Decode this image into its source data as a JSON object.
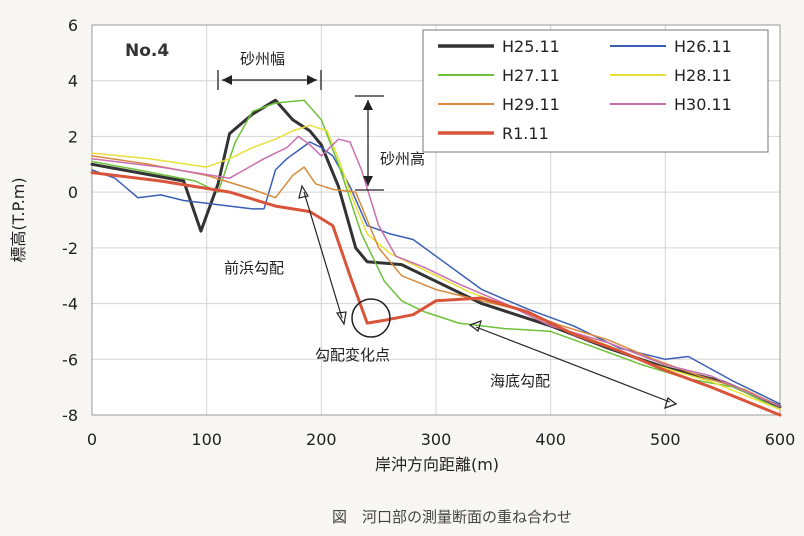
{
  "chart_data": {
    "type": "line",
    "panel_label": "No.4",
    "xlabel": "岸沖方向距離(m)",
    "ylabel": "標高(T.P.m)",
    "caption": "図　河口部の測量断面の重ね合わせ",
    "xlim": [
      0,
      600
    ],
    "ylim": [
      -8,
      6
    ],
    "xticks": [
      0,
      100,
      200,
      300,
      400,
      500,
      600
    ],
    "yticks": [
      6,
      4,
      2,
      0,
      -2,
      -4,
      -6,
      -8
    ],
    "grid": true,
    "legend_position": "top-right",
    "annotations": {
      "sandbar_width": "砂州幅",
      "sandbar_height": "砂州高",
      "foreshore_slope": "前浜勾配",
      "slope_change_point": "勾配変化点",
      "seabed_slope": "海底勾配"
    },
    "series": [
      {
        "name": "H25.11",
        "color": "#333333",
        "width": 3,
        "points": [
          [
            0,
            1.0
          ],
          [
            40,
            0.7
          ],
          [
            80,
            0.4
          ],
          [
            95,
            -1.4
          ],
          [
            110,
            0.3
          ],
          [
            120,
            2.1
          ],
          [
            140,
            2.8
          ],
          [
            160,
            3.3
          ],
          [
            175,
            2.6
          ],
          [
            190,
            2.2
          ],
          [
            200,
            1.7
          ],
          [
            215,
            0.2
          ],
          [
            230,
            -2.0
          ],
          [
            240,
            -2.5
          ],
          [
            270,
            -2.6
          ],
          [
            300,
            -3.2
          ],
          [
            340,
            -4.0
          ],
          [
            400,
            -4.8
          ],
          [
            450,
            -5.6
          ],
          [
            500,
            -6.3
          ],
          [
            550,
            -6.8
          ],
          [
            600,
            -7.7
          ]
        ]
      },
      {
        "name": "H26.11",
        "color": "#3a5fb5",
        "width": 1.5,
        "points": [
          [
            0,
            0.8
          ],
          [
            20,
            0.5
          ],
          [
            40,
            -0.2
          ],
          [
            60,
            -0.1
          ],
          [
            80,
            -0.3
          ],
          [
            100,
            -0.4
          ],
          [
            120,
            -0.5
          ],
          [
            140,
            -0.6
          ],
          [
            150,
            -0.6
          ],
          [
            160,
            0.8
          ],
          [
            170,
            1.2
          ],
          [
            180,
            1.5
          ],
          [
            190,
            1.8
          ],
          [
            200,
            1.6
          ],
          [
            210,
            1.3
          ],
          [
            225,
            0.2
          ],
          [
            240,
            -1.2
          ],
          [
            260,
            -1.5
          ],
          [
            280,
            -1.7
          ],
          [
            300,
            -2.3
          ],
          [
            340,
            -3.5
          ],
          [
            380,
            -4.2
          ],
          [
            420,
            -4.8
          ],
          [
            460,
            -5.6
          ],
          [
            500,
            -6.0
          ],
          [
            520,
            -5.9
          ],
          [
            560,
            -6.8
          ],
          [
            600,
            -7.6
          ]
        ]
      },
      {
        "name": "H27.11",
        "color": "#6fc13a",
        "width": 1.5,
        "points": [
          [
            0,
            1.1
          ],
          [
            40,
            0.8
          ],
          [
            90,
            0.4
          ],
          [
            110,
            0.0
          ],
          [
            125,
            1.8
          ],
          [
            140,
            2.9
          ],
          [
            160,
            3.2
          ],
          [
            185,
            3.3
          ],
          [
            200,
            2.6
          ],
          [
            215,
            1.0
          ],
          [
            235,
            -1.5
          ],
          [
            255,
            -3.2
          ],
          [
            270,
            -3.9
          ],
          [
            290,
            -4.3
          ],
          [
            320,
            -4.7
          ],
          [
            360,
            -4.9
          ],
          [
            400,
            -5.0
          ],
          [
            440,
            -5.6
          ],
          [
            480,
            -6.2
          ],
          [
            520,
            -6.7
          ],
          [
            560,
            -7.0
          ],
          [
            600,
            -7.8
          ]
        ]
      },
      {
        "name": "H28.11",
        "color": "#e8e03a",
        "width": 1.5,
        "points": [
          [
            0,
            1.4
          ],
          [
            50,
            1.2
          ],
          [
            100,
            0.9
          ],
          [
            120,
            1.2
          ],
          [
            140,
            1.6
          ],
          [
            160,
            1.9
          ],
          [
            175,
            2.2
          ],
          [
            190,
            2.4
          ],
          [
            205,
            2.2
          ],
          [
            215,
            1.2
          ],
          [
            225,
            0.0
          ],
          [
            240,
            -1.5
          ],
          [
            260,
            -2.2
          ],
          [
            290,
            -2.8
          ],
          [
            330,
            -3.6
          ],
          [
            370,
            -4.2
          ],
          [
            410,
            -4.9
          ],
          [
            450,
            -5.5
          ],
          [
            490,
            -6.2
          ],
          [
            540,
            -6.8
          ],
          [
            600,
            -7.8
          ]
        ]
      },
      {
        "name": "H29.11",
        "color": "#d88a3a",
        "width": 1.5,
        "points": [
          [
            0,
            1.3
          ],
          [
            50,
            1.0
          ],
          [
            100,
            0.6
          ],
          [
            140,
            0.1
          ],
          [
            160,
            -0.2
          ],
          [
            175,
            0.6
          ],
          [
            185,
            0.9
          ],
          [
            195,
            0.3
          ],
          [
            210,
            0.1
          ],
          [
            230,
            0.0
          ],
          [
            250,
            -2.0
          ],
          [
            270,
            -3.0
          ],
          [
            300,
            -3.5
          ],
          [
            330,
            -3.8
          ],
          [
            370,
            -4.2
          ],
          [
            410,
            -4.8
          ],
          [
            450,
            -5.3
          ],
          [
            490,
            -6.0
          ],
          [
            530,
            -6.6
          ],
          [
            570,
            -7.1
          ],
          [
            600,
            -7.7
          ]
        ]
      },
      {
        "name": "H30.11",
        "color": "#c96fb0",
        "width": 1.5,
        "points": [
          [
            0,
            1.2
          ],
          [
            60,
            0.9
          ],
          [
            120,
            0.5
          ],
          [
            150,
            1.2
          ],
          [
            170,
            1.6
          ],
          [
            180,
            2.0
          ],
          [
            190,
            1.7
          ],
          [
            200,
            1.3
          ],
          [
            215,
            1.9
          ],
          [
            225,
            1.8
          ],
          [
            235,
            0.8
          ],
          [
            250,
            -1.2
          ],
          [
            265,
            -2.3
          ],
          [
            290,
            -2.7
          ],
          [
            320,
            -3.3
          ],
          [
            360,
            -4.0
          ],
          [
            400,
            -4.8
          ],
          [
            450,
            -5.4
          ],
          [
            500,
            -6.2
          ],
          [
            540,
            -6.6
          ],
          [
            600,
            -7.7
          ]
        ]
      },
      {
        "name": "R1.11",
        "color": "#d8543a",
        "width": 3,
        "points": [
          [
            0,
            0.7
          ],
          [
            60,
            0.4
          ],
          [
            120,
            0.0
          ],
          [
            160,
            -0.5
          ],
          [
            190,
            -0.7
          ],
          [
            210,
            -1.2
          ],
          [
            225,
            -3.0
          ],
          [
            240,
            -4.7
          ],
          [
            255,
            -4.6
          ],
          [
            280,
            -4.4
          ],
          [
            300,
            -3.9
          ],
          [
            340,
            -3.8
          ],
          [
            380,
            -4.3
          ],
          [
            420,
            -5.1
          ],
          [
            460,
            -5.7
          ],
          [
            500,
            -6.4
          ],
          [
            540,
            -7.0
          ],
          [
            600,
            -8.0
          ]
        ]
      }
    ]
  }
}
